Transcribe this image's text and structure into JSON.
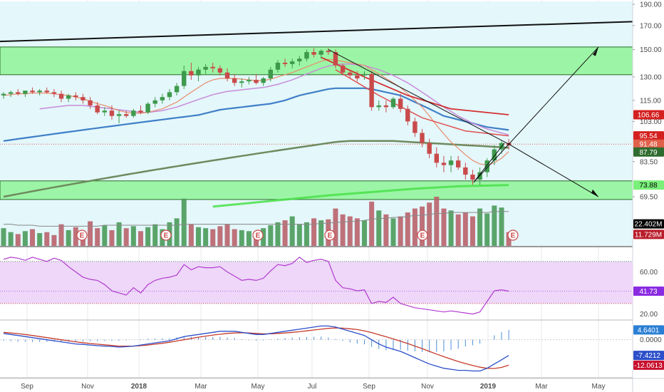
{
  "colors": {
    "up": "#3d9a4c",
    "down": "#c94a4a",
    "vol_up": "#4a9a5a",
    "vol_down": "#b9626a",
    "zone": "#9cf5a6",
    "zone_border": "#2a6a2a",
    "sma20": "#e98d6c",
    "sma50": "#c88bd9",
    "sma100": "#3f7fc7",
    "sma200": "#6e8a5e",
    "rsi": "#b23ad0",
    "macd": "#2c4ec9",
    "signal": "#c63b2b"
  },
  "chart_data": [
    {
      "type": "candlestick",
      "title": "",
      "x_ticks": [
        "Sep",
        "Nov",
        "2018",
        "Mar",
        "May",
        "Jul",
        "Sep",
        "Nov",
        "2019",
        "Mar",
        "May"
      ],
      "y_ticks": [
        "190.00",
        "170.00",
        "150.00",
        "130.00",
        "115.00",
        "103.00",
        "83.50",
        "69.50"
      ],
      "y_scale": "log",
      "ylim": [
        65,
        190
      ],
      "price_badges": [
        {
          "label": "106.66",
          "value": 106.66,
          "color": "#d41f1f"
        },
        {
          "label": "95.54",
          "value": 95.54,
          "color": "#d41f1f"
        },
        {
          "label": "91.48",
          "value": 91.48,
          "color": "#e0604a"
        },
        {
          "label": "87.79",
          "value": 87.79,
          "color": "#2e6b2e"
        },
        {
          "label": "73.88",
          "value": 73.88,
          "color": "#7af07a"
        }
      ],
      "zones": [
        [
          131.5,
          152
        ],
        [
          68.5,
          75.5
        ]
      ],
      "ohlc": [
        [
          118,
          120,
          116,
          119
        ],
        [
          119,
          121,
          117,
          120
        ],
        [
          120,
          122,
          118,
          119
        ],
        [
          119,
          121,
          117,
          121
        ],
        [
          121,
          123,
          119,
          120
        ],
        [
          120,
          122,
          118,
          121
        ],
        [
          121,
          123,
          119,
          120
        ],
        [
          120,
          122,
          117,
          119
        ],
        [
          119,
          121,
          114,
          116
        ],
        [
          116,
          119,
          114,
          118
        ],
        [
          118,
          120,
          115,
          117
        ],
        [
          117,
          119,
          113,
          115
        ],
        [
          115,
          117,
          110,
          112
        ],
        [
          112,
          114,
          107,
          108
        ],
        [
          108,
          111,
          106,
          109
        ],
        [
          109,
          112,
          104,
          106
        ],
        [
          106,
          109,
          102,
          107
        ],
        [
          107,
          109,
          105,
          106
        ],
        [
          106,
          110,
          105,
          109
        ],
        [
          109,
          112,
          107,
          108
        ],
        [
          108,
          114,
          107,
          113
        ],
        [
          113,
          117,
          111,
          115
        ],
        [
          115,
          119,
          113,
          117
        ],
        [
          117,
          122,
          115,
          120
        ],
        [
          120,
          126,
          118,
          124
        ],
        [
          124,
          138,
          122,
          134
        ],
        [
          134,
          140,
          128,
          131
        ],
        [
          131,
          137,
          127,
          135
        ],
        [
          135,
          139,
          132,
          137
        ],
        [
          137,
          140,
          133,
          136
        ],
        [
          136,
          138,
          131,
          133
        ],
        [
          133,
          136,
          127,
          129
        ],
        [
          129,
          132,
          124,
          126
        ],
        [
          126,
          129,
          123,
          127
        ],
        [
          127,
          130,
          125,
          128
        ],
        [
          128,
          132,
          125,
          126
        ],
        [
          126,
          130,
          124,
          129
        ],
        [
          129,
          137,
          127,
          135
        ],
        [
          135,
          142,
          133,
          140
        ],
        [
          140,
          143,
          137,
          139
        ],
        [
          139,
          143,
          136,
          141
        ],
        [
          141,
          145,
          138,
          143
        ],
        [
          143,
          150,
          141,
          148
        ],
        [
          148,
          151,
          144,
          146
        ],
        [
          146,
          150,
          143,
          149
        ],
        [
          149,
          151,
          146,
          148
        ],
        [
          148,
          150,
          136,
          138
        ],
        [
          138,
          139,
          131,
          133
        ],
        [
          133,
          135,
          129,
          131
        ],
        [
          131,
          134,
          127,
          129
        ],
        [
          131,
          134,
          128,
          132
        ],
        [
          132,
          134,
          109,
          111
        ],
        [
          111,
          115,
          109,
          112
        ],
        [
          112,
          115,
          108,
          111
        ],
        [
          111,
          117,
          110,
          116
        ],
        [
          116,
          119,
          108,
          110
        ],
        [
          110,
          112,
          101,
          103
        ],
        [
          103,
          105,
          95,
          97
        ],
        [
          97,
          99,
          90,
          92
        ],
        [
          92,
          94,
          85,
          87
        ],
        [
          87,
          90,
          81,
          83
        ],
        [
          83,
          86,
          79,
          82
        ],
        [
          82,
          86,
          79,
          84
        ],
        [
          84,
          86,
          80,
          81
        ],
        [
          81,
          83,
          76,
          78
        ],
        [
          78,
          80,
          74,
          76
        ],
        [
          76,
          81,
          74,
          79
        ],
        [
          79,
          85,
          77,
          84
        ],
        [
          84,
          91,
          82,
          89
        ],
        [
          89,
          93,
          87,
          92
        ],
        [
          92,
          94,
          89,
          91
        ]
      ],
      "sma20": [
        118,
        118.5,
        119,
        119,
        119.5,
        119.5,
        119.5,
        119,
        118.5,
        118,
        117,
        116,
        114.5,
        113,
        112,
        110.5,
        109,
        108,
        107.5,
        107.5,
        108,
        109,
        110,
        112,
        114,
        117,
        120,
        123,
        126,
        128,
        129,
        129,
        129,
        128.5,
        128,
        127.5,
        127.5,
        128.5,
        130,
        131.5,
        133,
        135,
        137,
        139,
        141,
        142.5,
        142,
        141,
        140,
        139,
        138,
        135,
        132,
        129,
        126,
        123,
        119,
        115,
        111,
        106,
        101,
        96.5,
        92.5,
        89.5,
        86.5,
        84,
        82.5,
        82,
        83,
        85,
        88
      ],
      "sma50": [
        null,
        null,
        null,
        null,
        null,
        110,
        110.5,
        111,
        111.5,
        112,
        112,
        112,
        111.5,
        111,
        110.5,
        110,
        109.5,
        109,
        108.5,
        108,
        108,
        108.5,
        109,
        110,
        111,
        112.5,
        114,
        115.5,
        117,
        118.5,
        119.5,
        120.5,
        121,
        121.5,
        122,
        122.5,
        123,
        124,
        125,
        126.5,
        128,
        130,
        132,
        134,
        136,
        137.5,
        138.5,
        139,
        139,
        138.5,
        138,
        136.5,
        135,
        133,
        131,
        128.5,
        126,
        123,
        120,
        117,
        114,
        111,
        108.5,
        106,
        104,
        102,
        100.5,
        99,
        98,
        97,
        96
      ],
      "sma100": [
        93,
        93.5,
        94,
        94.5,
        95,
        95.5,
        96,
        96.5,
        97,
        97.5,
        98,
        98.5,
        99,
        99.5,
        100,
        100.5,
        101,
        101.5,
        102,
        102.5,
        103,
        103.5,
        104,
        104.5,
        105,
        105.5,
        106,
        106.5,
        107.5,
        108.5,
        109.5,
        110,
        110.5,
        111,
        111.5,
        112,
        112.5,
        113,
        114,
        115,
        116.5,
        118,
        119,
        120,
        121,
        122,
        122.5,
        122.5,
        122.5,
        122.5,
        122.5,
        122,
        121,
        120,
        119,
        118,
        116,
        114,
        112,
        110,
        108,
        106,
        105,
        104,
        103,
        102,
        101,
        100,
        99.5,
        99,
        98.5
      ],
      "sma200": [
        69.5,
        70,
        70.5,
        71,
        71.5,
        72,
        72.5,
        73,
        73.5,
        74,
        74.5,
        75,
        75.5,
        76,
        76.5,
        77,
        77.5,
        78,
        78.5,
        79,
        79.5,
        80,
        80.5,
        81,
        81.5,
        82,
        82.5,
        83,
        83.5,
        84,
        84.5,
        85,
        85.5,
        86,
        86.5,
        87,
        87.5,
        88,
        88.5,
        89,
        89.5,
        90,
        90.5,
        91,
        91.5,
        92,
        92.5,
        92.8,
        93,
        93,
        93,
        93,
        93,
        93,
        93,
        92.8,
        92.6,
        92.4,
        92.2,
        92,
        91.8,
        91.6,
        91.4,
        91.2,
        91,
        90.8,
        90.6,
        90.4,
        90.2,
        90,
        89.8
      ],
      "volume_series": [
        {
          "name": "volume",
          "values": [
            18,
            14,
            12,
            15,
            17,
            13,
            14,
            11,
            22,
            16,
            19,
            15,
            25,
            18,
            21,
            16,
            24,
            18,
            20,
            15,
            19,
            22,
            17,
            24,
            28,
            48,
            22,
            19,
            18,
            17,
            20,
            22,
            17,
            16,
            15,
            14,
            18,
            21,
            24,
            26,
            30,
            22,
            24,
            28,
            26,
            27,
            38,
            32,
            30,
            28,
            26,
            45,
            36,
            32,
            28,
            30,
            34,
            38,
            40,
            44,
            50,
            38,
            36,
            32,
            34,
            30,
            38,
            33,
            41,
            39,
            14
          ]
        },
        {
          "name": "volume_ma",
          "values": [
            22,
            22,
            21,
            21,
            21,
            20,
            20,
            20,
            20,
            20,
            20,
            20,
            20,
            20,
            21,
            21,
            21,
            21,
            21,
            21,
            21,
            21,
            21,
            21,
            21,
            22,
            22,
            22,
            22,
            22,
            22,
            22,
            22,
            22,
            22,
            22,
            22,
            22,
            22,
            22,
            22,
            22,
            22,
            22,
            23,
            23,
            24,
            24,
            25,
            25,
            26,
            27,
            28,
            28,
            29,
            29,
            30,
            31,
            31,
            32,
            33,
            33,
            34,
            34,
            34,
            34,
            34,
            34,
            35,
            35,
            35
          ]
        }
      ],
      "volume_badges": [
        {
          "label": "22.402M",
          "value": 22.402,
          "color": "#000000"
        },
        {
          "label": "11.729M",
          "value": 11.729,
          "color": "#b91c2a"
        }
      ],
      "earnings_marker": "E",
      "earnings_bars": [
        10,
        20,
        30,
        40,
        50,
        60,
        70
      ]
    },
    {
      "type": "line",
      "title": "",
      "series": [
        {
          "name": "",
          "values": [
            72,
            74,
            73,
            71,
            74,
            72,
            70,
            73,
            71,
            65,
            60,
            55,
            53,
            52,
            48,
            42,
            40,
            38,
            45,
            40,
            48,
            52,
            54,
            55,
            57,
            67,
            62,
            65,
            64,
            64,
            65,
            60,
            56,
            52,
            53,
            52,
            54,
            61,
            67,
            66,
            68,
            74,
            69,
            71,
            72,
            70,
            52,
            45,
            44,
            42,
            43,
            30,
            32,
            31,
            36,
            30,
            28,
            26,
            25,
            24,
            23,
            22,
            23,
            22,
            21,
            20,
            22,
            32,
            42,
            43,
            41.73
          ]
        }
      ],
      "ylim": [
        15,
        80
      ],
      "y_ticks": [
        "60.00",
        "20.00"
      ],
      "levels": [
        70,
        30
      ],
      "badge": {
        "label": "41.73",
        "value": 41.73,
        "color": "#8a2be2"
      }
    },
    {
      "type": "line",
      "title": "",
      "series": [
        {
          "name": "",
          "values": [
            3,
            2.5,
            2,
            1.5,
            1,
            0.5,
            0,
            -0.5,
            -1,
            -1.5,
            -2,
            -2.2,
            -2.5,
            -2.8,
            -3,
            -3.2,
            -3.5,
            -3.3,
            -3,
            -2.5,
            -2,
            -1.5,
            -1,
            -0.5,
            0.5,
            1.5,
            2,
            2.5,
            3,
            3.5,
            4,
            4,
            4,
            3.5,
            3,
            2.5,
            2.5,
            3,
            3.5,
            4,
            4.5,
            5,
            5.5,
            6,
            6.5,
            6.5,
            6,
            5,
            4,
            3,
            2,
            0,
            -2,
            -3.5,
            -4.5,
            -5.5,
            -7,
            -8.5,
            -10,
            -11.5,
            -12.5,
            -13.5,
            -14,
            -14.5,
            -14.5,
            -14.8,
            -14.8,
            -13.5,
            -11.5,
            -9.5,
            -7.4212
          ]
        },
        {
          "name": "",
          "values": [
            3.5,
            3.2,
            2.9,
            2.5,
            2,
            1.5,
            1,
            0.5,
            0,
            -0.5,
            -1,
            -1.4,
            -1.8,
            -2.1,
            -2.4,
            -2.7,
            -3,
            -3,
            -3,
            -2.8,
            -2.5,
            -2.1,
            -1.7,
            -1.2,
            -0.6,
            0,
            0.6,
            1.2,
            1.7,
            2.2,
            2.6,
            3,
            3.2,
            3.3,
            3.2,
            3,
            2.8,
            2.8,
            3,
            3.2,
            3.5,
            3.8,
            4.2,
            4.6,
            5,
            5.4,
            5.6,
            5.5,
            5.2,
            4.8,
            4.2,
            3.4,
            2.4,
            1.4,
            0.4,
            -0.7,
            -1.8,
            -3,
            -4.2,
            -5.5,
            -6.8,
            -8,
            -9.2,
            -10.3,
            -11.3,
            -12.2,
            -13,
            -13.5,
            -13.6,
            -13.1,
            -12.0613
          ]
        }
      ],
      "histogram": [
        -0.5,
        -0.7,
        -0.9,
        -1,
        -1,
        -1,
        -1,
        -1,
        -1,
        -1,
        -1,
        -0.8,
        -0.7,
        -0.7,
        -0.6,
        -0.5,
        -0.5,
        -0.3,
        0,
        0.3,
        0.5,
        0.6,
        0.7,
        0.7,
        1.1,
        1.5,
        1.4,
        1.3,
        1.3,
        1.3,
        1.4,
        1,
        0.8,
        0.2,
        -0.2,
        -0.5,
        -0.3,
        0.2,
        0.5,
        0.8,
        1,
        1.2,
        1.3,
        1.4,
        1.5,
        1.1,
        0.4,
        -0.5,
        -1.2,
        -1.8,
        -2.2,
        -3.4,
        -4.4,
        -4.9,
        -4.9,
        -4.8,
        -5.2,
        -5.5,
        -5.8,
        -6,
        -5.7,
        -5.5,
        -4.8,
        -4.2,
        -3.2,
        -2.6,
        -1.8,
        0,
        2.1,
        3.6,
        4.6401
      ],
      "ylim": [
        -18,
        9
      ],
      "y_ticks": [
        "0.0000"
      ],
      "badges": [
        {
          "label": "4.6401",
          "value": 4.6401,
          "color": "#2a7fd4"
        },
        {
          "label": "-7.4212",
          "value": -7.4212,
          "color": "#2c4ec9"
        },
        {
          "label": "-12.0613",
          "value": -12.0613,
          "color": "#c8102e"
        }
      ]
    }
  ]
}
